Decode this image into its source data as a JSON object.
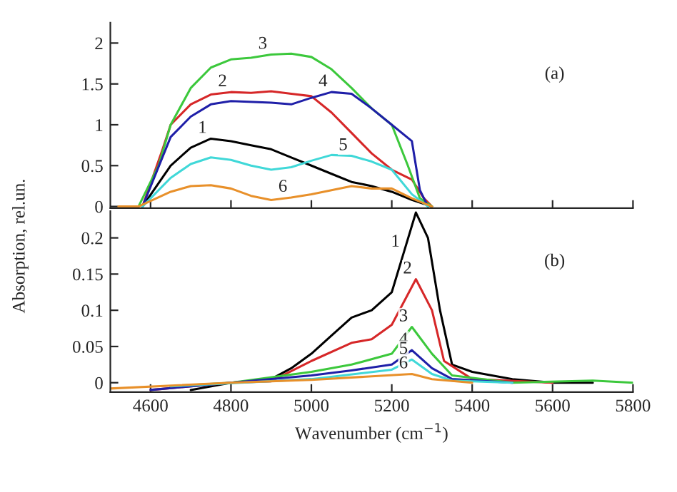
{
  "chart_data": [
    {
      "type": "line",
      "ylabel": "Absorption, rel.un.",
      "xlim": [
        4500,
        5800
      ],
      "ylim": [
        -0.02,
        2.25
      ],
      "xticks": [
        4600,
        4800,
        5000,
        5200,
        5400,
        5600,
        5800
      ],
      "yticks": [
        0,
        0.5,
        1,
        1.5,
        2
      ],
      "tick_labels": "y",
      "legend": false,
      "grid": false,
      "series": [
        {
          "color": "#000000",
          "x": [
            4580,
            4650,
            4700,
            4750,
            4800,
            4850,
            4900,
            4950,
            5000,
            5050,
            5100,
            5150,
            5200,
            5250,
            5300
          ],
          "values": [
            0,
            0.5,
            0.72,
            0.83,
            0.8,
            0.75,
            0.7,
            0.6,
            0.5,
            0.4,
            0.3,
            0.25,
            0.18,
            0.08,
            0
          ]
        },
        {
          "color": "#d62728",
          "x": [
            4580,
            4630,
            4650,
            4700,
            4750,
            4800,
            4850,
            4900,
            4950,
            5000,
            5050,
            5100,
            5150,
            5200,
            5250,
            5280,
            5300
          ],
          "values": [
            0,
            0.7,
            1.0,
            1.25,
            1.37,
            1.4,
            1.39,
            1.41,
            1.38,
            1.35,
            1.15,
            0.9,
            0.65,
            0.45,
            0.33,
            0.1,
            0
          ]
        },
        {
          "color": "#3cc83c",
          "x": [
            4570,
            4620,
            4650,
            4700,
            4750,
            4800,
            4850,
            4900,
            4950,
            5000,
            5050,
            5100,
            5150,
            5200,
            5240,
            5270,
            5300
          ],
          "values": [
            0,
            0.5,
            1.0,
            1.45,
            1.7,
            1.8,
            1.82,
            1.86,
            1.87,
            1.83,
            1.68,
            1.45,
            1.2,
            1.0,
            0.5,
            0.1,
            0
          ]
        },
        {
          "color": "#1f1fa8",
          "x": [
            4580,
            4650,
            4700,
            4750,
            4800,
            4900,
            4950,
            5000,
            5050,
            5100,
            5150,
            5200,
            5250,
            5270,
            5290
          ],
          "values": [
            0,
            0.85,
            1.1,
            1.25,
            1.29,
            1.27,
            1.25,
            1.33,
            1.4,
            1.38,
            1.2,
            1.0,
            0.8,
            0.2,
            0
          ]
        },
        {
          "color": "#40d8d8",
          "x": [
            4580,
            4650,
            4700,
            4750,
            4800,
            4850,
            4900,
            4950,
            5000,
            5050,
            5100,
            5150,
            5200,
            5250,
            5290
          ],
          "values": [
            0,
            0.35,
            0.52,
            0.6,
            0.57,
            0.5,
            0.45,
            0.48,
            0.56,
            0.63,
            0.62,
            0.55,
            0.45,
            0.15,
            0
          ]
        },
        {
          "color": "#e8902a",
          "x": [
            4520,
            4570,
            4650,
            4700,
            4750,
            4800,
            4850,
            4900,
            4950,
            5000,
            5050,
            5100,
            5150,
            5200,
            5250,
            5300
          ],
          "values": [
            0,
            0,
            0.18,
            0.25,
            0.26,
            0.22,
            0.13,
            0.08,
            0.11,
            0.15,
            0.2,
            0.25,
            0.22,
            0.22,
            0.1,
            0
          ]
        }
      ],
      "annotations": [
        {
          "text": "1",
          "x": 4750,
          "y": 0.83
        },
        {
          "text": "2",
          "x": 4800,
          "y": 1.4
        },
        {
          "text": "3",
          "x": 4900,
          "y": 1.86
        },
        {
          "text": "4",
          "x": 5050,
          "y": 1.4
        },
        {
          "text": "5",
          "x": 5100,
          "y": 0.62
        },
        {
          "text": "6",
          "x": 4950,
          "y": 0.11
        },
        "(a)"
      ]
    },
    {
      "type": "line",
      "xlabel": "Wavenumber (cm$^{−1}$)",
      "xlim": [
        4500,
        5800
      ],
      "ylim": [
        -0.013,
        0.237
      ],
      "xticks": [
        4600,
        4800,
        5000,
        5200,
        5400,
        5600,
        5800
      ],
      "yticks": [
        0,
        0.05,
        0.1,
        0.15,
        0.2
      ],
      "legend": false,
      "grid": false,
      "series": [
        {
          "color": "#000000",
          "x": [
            4700,
            4800,
            4900,
            4950,
            5000,
            5050,
            5100,
            5150,
            5200,
            5230,
            5260,
            5290,
            5320,
            5350,
            5400,
            5500,
            5600,
            5700
          ],
          "values": [
            -0.01,
            0,
            0.005,
            0.02,
            0.04,
            0.065,
            0.09,
            0.1,
            0.125,
            0.18,
            0.235,
            0.2,
            0.1,
            0.025,
            0.015,
            0.005,
            0,
            0
          ]
        },
        {
          "color": "#d62728",
          "x": [
            4600,
            4800,
            4900,
            5000,
            5100,
            5150,
            5200,
            5260,
            5300,
            5330,
            5400,
            5600
          ],
          "values": [
            -0.01,
            0,
            0.002,
            0.03,
            0.055,
            0.06,
            0.08,
            0.143,
            0.1,
            0.03,
            0.005,
            0
          ]
        },
        {
          "color": "#3cc83c",
          "x": [
            4650,
            4800,
            5000,
            5100,
            5200,
            5250,
            5300,
            5350,
            5500,
            5700,
            5800
          ],
          "values": [
            -0.005,
            0,
            0.015,
            0.025,
            0.04,
            0.077,
            0.04,
            0.01,
            0,
            0.003,
            0
          ]
        },
        {
          "color": "#1f1fa8",
          "x": [
            4600,
            4800,
            5000,
            5100,
            5200,
            5250,
            5300,
            5350,
            5500
          ],
          "values": [
            -0.01,
            0,
            0.01,
            0.017,
            0.025,
            0.045,
            0.02,
            0.005,
            0
          ]
        },
        {
          "color": "#40d8d8",
          "x": [
            4650,
            5000,
            5200,
            5250,
            5300,
            5350,
            5500
          ],
          "values": [
            -0.005,
            0.005,
            0.018,
            0.032,
            0.012,
            0.003,
            0
          ]
        },
        {
          "color": "#e8902a",
          "x": [
            4500,
            4800,
            5000,
            5250,
            5300,
            5400
          ],
          "values": [
            -0.008,
            0,
            0.004,
            0.012,
            0.005,
            0
          ]
        }
      ],
      "annotations": [
        {
          "text": "1",
          "x": 5230,
          "y": 0.18
        },
        {
          "text": "2",
          "x": 5260,
          "y": 0.143
        },
        {
          "text": "3",
          "x": 5250,
          "y": 0.077
        },
        {
          "text": "4",
          "x": 5250,
          "y": 0.045
        },
        {
          "text": "5",
          "x": 5250,
          "y": 0.032
        },
        {
          "text": "6",
          "x": 5250,
          "y": 0.012
        },
        "(b)"
      ]
    }
  ]
}
